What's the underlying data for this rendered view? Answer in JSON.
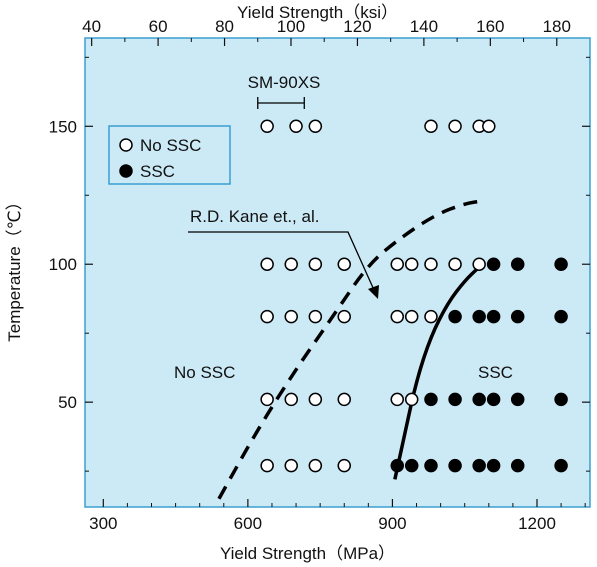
{
  "chart_data": {
    "type": "scatter",
    "xlabel": "Yield Strength（MPa）",
    "x2label": "Yield Strength（ksi）",
    "ylabel": "Temperature（℃）",
    "xlim": [
      262,
      1310
    ],
    "ylim": [
      12,
      182
    ],
    "x_ticks": [
      300,
      600,
      900,
      1200
    ],
    "x2_ticks": [
      40,
      60,
      80,
      100,
      120,
      140,
      160,
      180
    ],
    "y_ticks": [
      50,
      100,
      150
    ],
    "grid": false,
    "legend_position": "top-left",
    "background_color": "#cce9f6",
    "border_color": "#3aa0d0",
    "series": [
      {
        "name": "No SSC",
        "marker": "open-circle",
        "points": [
          [
            640,
            150
          ],
          [
            700,
            150
          ],
          [
            740,
            150
          ],
          [
            980,
            150
          ],
          [
            1030,
            150
          ],
          [
            1080,
            150
          ],
          [
            1100,
            150
          ],
          [
            640,
            100
          ],
          [
            690,
            100
          ],
          [
            740,
            100
          ],
          [
            800,
            100
          ],
          [
            910,
            100
          ],
          [
            940,
            100
          ],
          [
            980,
            100
          ],
          [
            1030,
            100
          ],
          [
            1080,
            100
          ],
          [
            640,
            81
          ],
          [
            690,
            81
          ],
          [
            740,
            81
          ],
          [
            800,
            81
          ],
          [
            910,
            81
          ],
          [
            940,
            81
          ],
          [
            980,
            81
          ],
          [
            640,
            51
          ],
          [
            690,
            51
          ],
          [
            740,
            51
          ],
          [
            800,
            51
          ],
          [
            910,
            51
          ],
          [
            940,
            51
          ],
          [
            640,
            27
          ],
          [
            690,
            27
          ],
          [
            740,
            27
          ],
          [
            800,
            27
          ]
        ]
      },
      {
        "name": "SSC",
        "marker": "filled-circle",
        "points": [
          [
            1110,
            100
          ],
          [
            1160,
            100
          ],
          [
            1250,
            100
          ],
          [
            1030,
            81
          ],
          [
            1080,
            81
          ],
          [
            1110,
            81
          ],
          [
            1160,
            81
          ],
          [
            1250,
            81
          ],
          [
            980,
            51
          ],
          [
            1030,
            51
          ],
          [
            1080,
            51
          ],
          [
            1110,
            51
          ],
          [
            1160,
            51
          ],
          [
            1250,
            51
          ],
          [
            910,
            27
          ],
          [
            940,
            27
          ],
          [
            980,
            27
          ],
          [
            1030,
            27
          ],
          [
            1080,
            27
          ],
          [
            1110,
            27
          ],
          [
            1160,
            27
          ],
          [
            1250,
            27
          ]
        ]
      }
    ],
    "curves": [
      {
        "label": "R.D. Kane et., al.",
        "style": "dashed",
        "points": [
          [
            540,
            15
          ],
          [
            620,
            40
          ],
          [
            700,
            62
          ],
          [
            780,
            82
          ],
          [
            850,
            100
          ],
          [
            920,
            110
          ],
          [
            990,
            118
          ],
          [
            1050,
            122
          ],
          [
            1090,
            123
          ]
        ]
      },
      {
        "style": "solid",
        "points": [
          [
            905,
            22
          ],
          [
            925,
            38
          ],
          [
            950,
            58
          ],
          [
            980,
            74
          ],
          [
            1015,
            86
          ],
          [
            1050,
            94
          ],
          [
            1080,
            99
          ]
        ]
      }
    ],
    "annotations": {
      "sm_label": "SM-90XS",
      "sm_range_ksi": [
        90,
        104
      ],
      "kane_label": "R.D. Kane et., al.",
      "region_left": "No SSC",
      "region_right": "SSC"
    }
  }
}
